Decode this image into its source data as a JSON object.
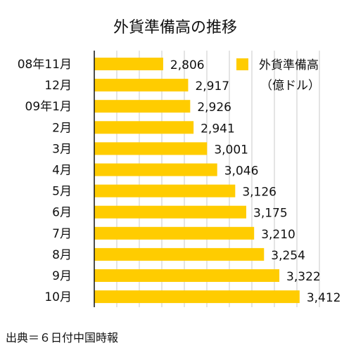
{
  "chart_data": {
    "type": "bar",
    "orientation": "horizontal",
    "title": "外貨準備高の推移",
    "categories": [
      "08年11月",
      "12月",
      "09年1月",
      "2月",
      "3月",
      "4月",
      "5月",
      "6月",
      "7月",
      "8月",
      "9月",
      "10月"
    ],
    "series": [
      {
        "name": "外貨準備高",
        "unit": "（億ドル）",
        "values": [
          2806,
          2917,
          2926,
          2941,
          3001,
          3046,
          3126,
          3175,
          3210,
          3254,
          3322,
          3412
        ],
        "value_labels": [
          "2,806",
          "2,917",
          "2,926",
          "2,941",
          "3,001",
          "3,046",
          "3,126",
          "3,175",
          "3,210",
          "3,254",
          "3,322",
          "3,412"
        ]
      }
    ],
    "xlim": [
      2500,
      3500
    ],
    "grid": true,
    "tick_labels_shown": false,
    "legend_position": "top-right",
    "bar_color": "#FFCC00",
    "grid_color": "#C8C8C8",
    "axis_color": "#111111",
    "source": "出典＝６日付中国時報"
  }
}
